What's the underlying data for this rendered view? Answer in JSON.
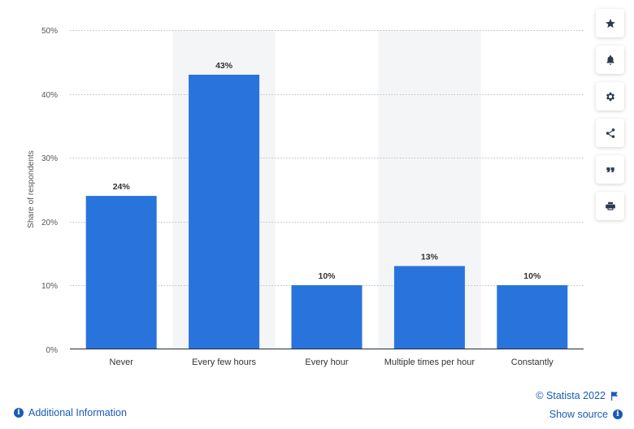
{
  "chart_data": {
    "type": "bar",
    "categories": [
      "Never",
      "Every few hours",
      "Every hour",
      "Multiple times per hour",
      "Constantly"
    ],
    "values": [
      24,
      43,
      10,
      13,
      10
    ],
    "value_labels": [
      "24%",
      "43%",
      "10%",
      "13%",
      "10%"
    ],
    "ylabel": "Share of respondents",
    "ylim": [
      0,
      50
    ],
    "yticks": [
      0,
      10,
      20,
      30,
      40,
      50
    ],
    "ytick_labels": [
      "0%",
      "10%",
      "20%",
      "30%",
      "40%",
      "50%"
    ],
    "grid": true,
    "bar_color": "#2874dc",
    "band_color": "#f4f5f7"
  },
  "toolbar": {
    "items": [
      "star-icon",
      "bell-icon",
      "gear-icon",
      "share-icon",
      "quote-icon",
      "print-icon"
    ]
  },
  "footer": {
    "credit": "© Statista 2022",
    "show_source": "Show source",
    "additional_info": "Additional Information"
  },
  "colors": {
    "link": "#1a5bb8",
    "icon": "#2b3a4f"
  }
}
